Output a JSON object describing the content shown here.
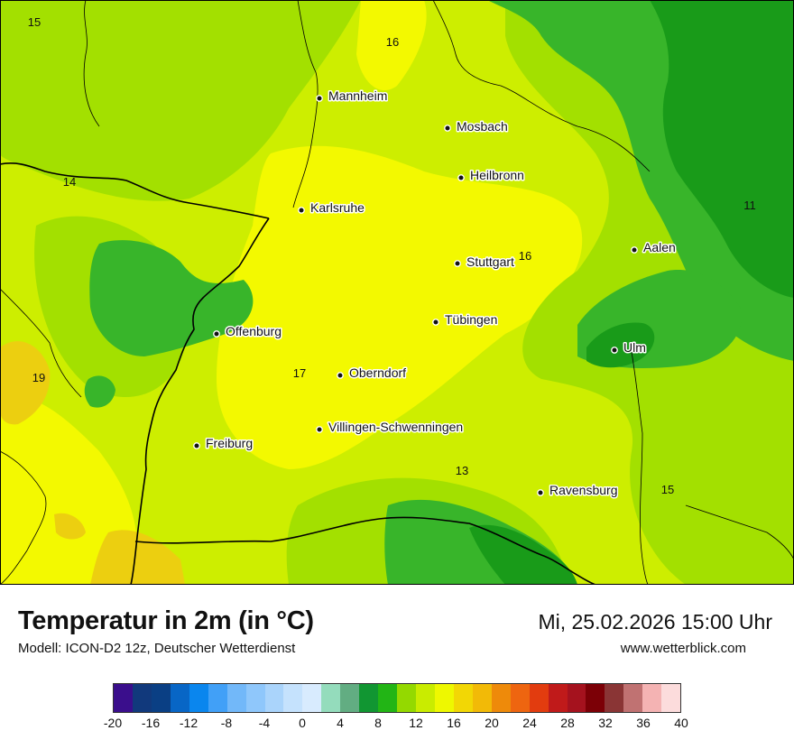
{
  "map": {
    "cities": [
      {
        "name": "Mannheim"
      },
      {
        "name": "Mosbach"
      },
      {
        "name": "Heilbronn"
      },
      {
        "name": "Karlsruhe"
      },
      {
        "name": "Aalen"
      },
      {
        "name": "Stuttgart"
      },
      {
        "name": "Tübingen"
      },
      {
        "name": "Offenburg"
      },
      {
        "name": "Ulm"
      },
      {
        "name": "Oberndorf"
      },
      {
        "name": "Villingen-Schwenningen"
      },
      {
        "name": "Freiburg"
      },
      {
        "name": "Ravensburg"
      }
    ],
    "temperature_labels": [
      "15",
      "16",
      "14",
      "11",
      "16",
      "19",
      "17",
      "13",
      "15"
    ],
    "colors": {
      "dark_green": "#199b19",
      "green": "#38b52a",
      "light_green": "#a3e000",
      "yellow_green": "#cdee00",
      "yellow": "#f3f900",
      "warm_yellow": "#eccf10",
      "border_line": "#000000"
    }
  },
  "footer": {
    "title": "Temperatur in 2m (in °C)",
    "subtitle": "Modell: ICON-D2 12z, Deutscher Wetterdienst",
    "datetime": "Mi, 25.02.2026 15:00 Uhr",
    "website": "www.wetterblick.com"
  },
  "legend": {
    "colors": [
      "#3a0e8c",
      "#11397c",
      "#0a3f84",
      "#0866c6",
      "#0a86ee",
      "#41a0f7",
      "#72b8f9",
      "#8fc7fb",
      "#aad4fb",
      "#c5e2fd",
      "#d8ebfe",
      "#94dcbc",
      "#62ad82",
      "#119632",
      "#22b515",
      "#94d900",
      "#c9ec00",
      "#eef800",
      "#f2d705",
      "#f2ba07",
      "#ee8a0a",
      "#ee6510",
      "#e23c0f",
      "#c01a1a",
      "#a5121e",
      "#7c0006",
      "#8a3535",
      "#c07272",
      "#f4b3b3",
      "#fcdcdc"
    ],
    "tick_labels": [
      "-20",
      "-16",
      "-12",
      "-8",
      "-4",
      "0",
      "4",
      "8",
      "12",
      "16",
      "20",
      "24",
      "28",
      "32",
      "36",
      "40"
    ]
  }
}
